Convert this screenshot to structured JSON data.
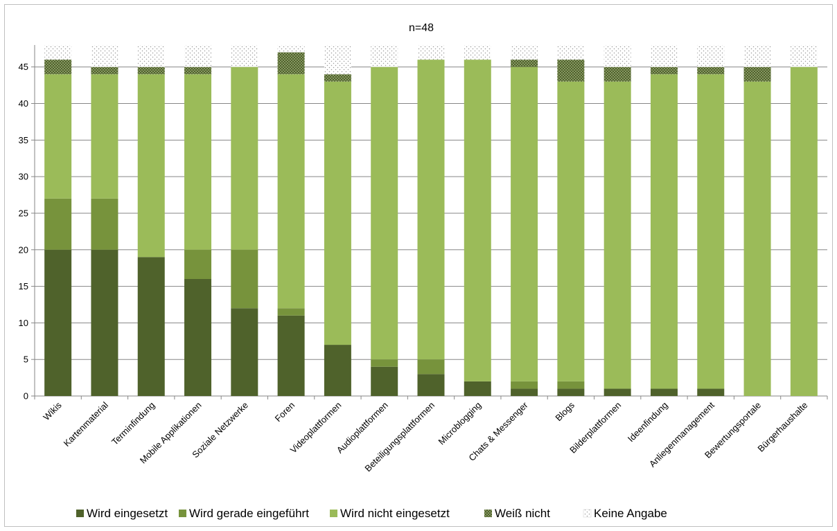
{
  "chart_data": {
    "type": "bar",
    "stacked": true,
    "title": "n=48",
    "xlabel": "",
    "ylabel": "",
    "ylim": [
      0,
      48
    ],
    "yticks": [
      0,
      5,
      10,
      15,
      20,
      25,
      30,
      35,
      40,
      45
    ],
    "grid": true,
    "legend_position": "bottom",
    "categories": [
      "Wikis",
      "Kartenmaterial",
      "Terminfindung",
      "Mobile Applikationen",
      "Soziale Netzwerke",
      "Foren",
      "Videoplattformen",
      "Audioplattformen",
      "Beteiligungsplattformen",
      "Microblogging",
      "Chats & Messenger",
      "Blogs",
      "Bilderplattformen",
      "Ideenfindung",
      "Anliegenmanagement",
      "Bewertungsportale",
      "Bürgerhaushalte"
    ],
    "series": [
      {
        "name": "Wird eingesetzt",
        "color": "#4f622b",
        "pattern": "solid",
        "values": [
          20,
          20,
          19,
          16,
          12,
          11,
          7,
          4,
          3,
          2,
          1,
          1,
          1,
          1,
          1,
          0,
          0
        ]
      },
      {
        "name": "Wird gerade eingeführt",
        "color": "#77933c",
        "pattern": "solid",
        "values": [
          7,
          7,
          0,
          4,
          8,
          1,
          0,
          1,
          2,
          0,
          1,
          1,
          0,
          0,
          0,
          0,
          0
        ]
      },
      {
        "name": "Wird nicht eingesetzt",
        "color": "#9bbb59",
        "pattern": "solid",
        "values": [
          17,
          17,
          25,
          24,
          25,
          32,
          36,
          40,
          41,
          44,
          43,
          41,
          42,
          43,
          43,
          43,
          45
        ]
      },
      {
        "name": "Weiß nicht",
        "color": "#4f622b",
        "pattern": "dense-dots",
        "values": [
          2,
          1,
          1,
          1,
          0,
          3,
          1,
          0,
          0,
          0,
          1,
          3,
          2,
          1,
          1,
          2,
          0
        ]
      },
      {
        "name": "Keine Angabe",
        "color": "#b8b8b8",
        "pattern": "sparse-dots",
        "values": [
          2,
          3,
          3,
          3,
          3,
          1,
          4,
          3,
          2,
          2,
          2,
          2,
          3,
          3,
          3,
          3,
          3
        ]
      }
    ]
  }
}
